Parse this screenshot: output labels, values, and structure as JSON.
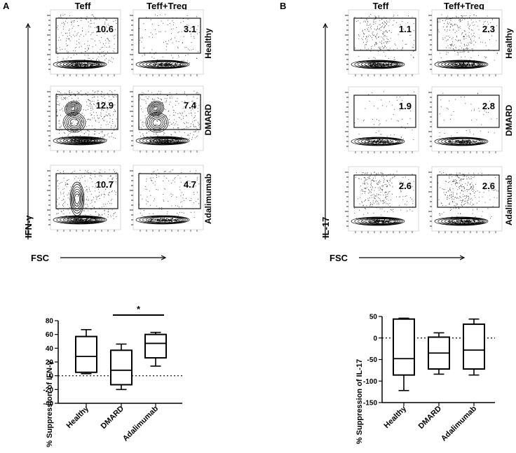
{
  "figure": {
    "panels": [
      {
        "letter": "A",
        "col_headers": [
          "Teff",
          "Teff+Treg"
        ],
        "row_labels": [
          "Healthy",
          "DMARD",
          "Adalimumab"
        ],
        "gate_values": [
          [
            "10.6",
            "3.1"
          ],
          [
            "12.9",
            "7.4"
          ],
          [
            "10.7",
            "4.7"
          ]
        ],
        "y_axis_label": "IFN-γ",
        "x_axis_label": "FSC"
      },
      {
        "letter": "B",
        "col_headers": [
          "Teff",
          "Teff+Treg"
        ],
        "row_labels": [
          "Healthy",
          "DMARD",
          "Adalimumab"
        ],
        "gate_values": [
          [
            "1.1",
            "2.3"
          ],
          [
            "1.9",
            "2.8"
          ],
          [
            "2.6",
            "2.6"
          ]
        ],
        "y_axis_label": "IL-17",
        "x_axis_label": "FSC"
      }
    ]
  },
  "chart_data": [
    {
      "type": "box",
      "ylabel": "% Suppression of IFN-γ",
      "categories": [
        "Healthy",
        "DMARD",
        "Adalimumab"
      ],
      "ylim": [
        -40,
        80
      ],
      "yticks": [
        -40,
        -20,
        0,
        20,
        40,
        60,
        80
      ],
      "reference_line": 0,
      "boxes": [
        {
          "min": 3,
          "q1": 5,
          "median": 28,
          "q3": 57,
          "max": 67
        },
        {
          "min": -20,
          "q1": -13,
          "median": 8,
          "q3": 37,
          "max": 46
        },
        {
          "min": 14,
          "q1": 26,
          "median": 47,
          "q3": 60,
          "max": 63
        }
      ],
      "significance": {
        "from": "DMARD",
        "to": "Adalimumab",
        "label": "*"
      }
    },
    {
      "type": "box",
      "ylabel": "% Suppression of IL-17",
      "categories": [
        "Healthy",
        "DMARD",
        "Adalimumab"
      ],
      "ylim": [
        -150,
        50
      ],
      "yticks": [
        -150,
        -100,
        -50,
        0,
        50
      ],
      "reference_line": 0,
      "boxes": [
        {
          "min": -122,
          "q1": -86,
          "median": -48,
          "q3": 44,
          "max": 46
        },
        {
          "min": -84,
          "q1": -72,
          "median": -35,
          "q3": 2,
          "max": 12
        },
        {
          "min": -86,
          "q1": -72,
          "median": -28,
          "q3": 32,
          "max": 44
        }
      ]
    }
  ]
}
